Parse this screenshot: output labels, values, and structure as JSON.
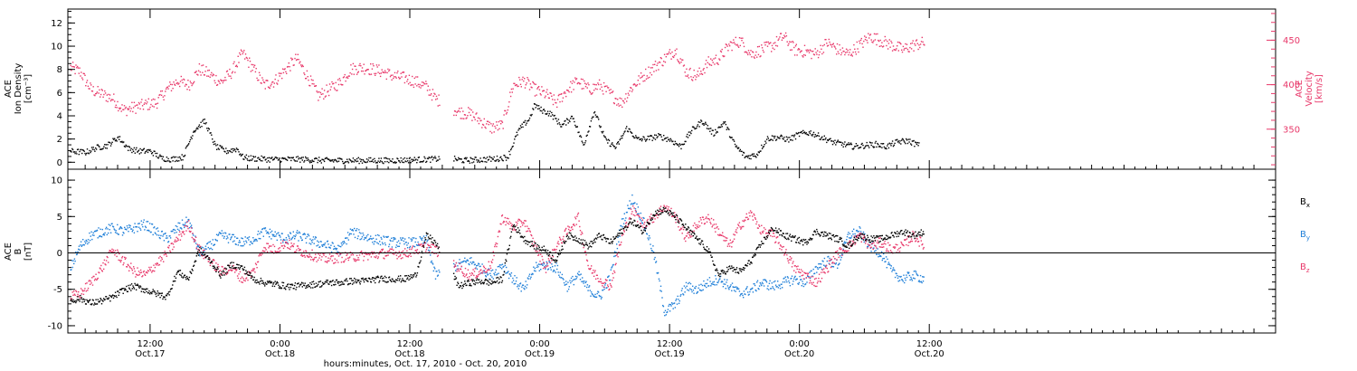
{
  "footer": {
    "xlabel": "hours:minutes, Oct. 17, 2010 - Oct. 20, 2010"
  },
  "colors": {
    "black": "#000000",
    "pink": "#e8386a",
    "blue": "#1f7fd8"
  },
  "chart_data": [
    {
      "type": "scatter",
      "panel": "top",
      "title": "",
      "ylabel_lines": [
        "ACE",
        "Ion Density",
        "[cm⁻³]"
      ],
      "y2label_lines": [
        "ACE",
        "Velocity",
        "[km/s]"
      ],
      "xlabel": "hours:minutes, Oct. 17, 2010 - Oct. 20, 2010",
      "x_unit": "hours since 2010-10-17 00:00 UT",
      "xlim": [
        4.4,
        116.0
      ],
      "x_ticks": [
        {
          "value": 12,
          "time": "12:00",
          "day": "Oct.17"
        },
        {
          "value": 24,
          "time": "0:00",
          "day": "Oct.18"
        },
        {
          "value": 36,
          "time": "12:00",
          "day": "Oct.18"
        },
        {
          "value": 48,
          "time": "0:00",
          "day": "Oct.19"
        },
        {
          "value": 60,
          "time": "12:00",
          "day": "Oct.19"
        },
        {
          "value": 72,
          "time": "0:00",
          "day": "Oct.20"
        },
        {
          "value": 84,
          "time": "12:00",
          "day": "Oct.20"
        }
      ],
      "ylim": [
        -0.6,
        13.2
      ],
      "y_ticks": [
        0,
        2,
        4,
        6,
        8,
        10,
        12
      ],
      "y2lim": [
        305,
        485
      ],
      "y2_ticks": [
        350,
        400,
        450
      ],
      "series": [
        {
          "axis": "left",
          "color": "#000000",
          "x": [
            4.6,
            6,
            7,
            8,
            9,
            10,
            11,
            12,
            13,
            14,
            15,
            16,
            17,
            18,
            19,
            20,
            20.5,
            21,
            22,
            23,
            24,
            26,
            28,
            30,
            32,
            34,
            36,
            38,
            39.5,
            41,
            42,
            43,
            44,
            45,
            46,
            47,
            47.5,
            48,
            49,
            50,
            51,
            52,
            53,
            54,
            55,
            56,
            57,
            58,
            59,
            60,
            61,
            62,
            63,
            64,
            65,
            66,
            67,
            68,
            69,
            70,
            71,
            72,
            73,
            74,
            75,
            76,
            77,
            78,
            79,
            80,
            81,
            82,
            83
          ],
          "y": [
            1.0,
            0.9,
            1.3,
            1.5,
            2.2,
            1.2,
            1.0,
            1.0,
            0.4,
            0.3,
            0.5,
            2.8,
            3.6,
            1.4,
            1.0,
            1.2,
            0.5,
            0.4,
            0.35,
            0.3,
            0.3,
            0.3,
            0.2,
            0.2,
            0.2,
            0.2,
            0.25,
            0.3,
            0.4,
            0.2,
            0.25,
            0.3,
            0.35,
            0.5,
            2.8,
            3.8,
            5.0,
            4.6,
            4.2,
            3.2,
            4.0,
            1.5,
            4.5,
            2.0,
            1.3,
            3.0,
            2.0,
            2.1,
            2.3,
            2.0,
            1.4,
            2.8,
            3.6,
            2.5,
            3.5,
            1.5,
            0.5,
            0.7,
            2.1,
            2.2,
            2.0,
            2.5,
            2.6,
            2.2,
            1.8,
            1.6,
            1.4,
            1.5,
            1.6,
            1.4,
            1.8,
            1.9,
            1.5
          ],
          "gaps": [
            [
              38.7,
              40.0
            ]
          ]
        },
        {
          "axis": "right",
          "color": "#e8386a",
          "x": [
            4.6,
            5.5,
            6.5,
            7.5,
            8.5,
            9.5,
            10.5,
            11.5,
            12.5,
            13.5,
            14.5,
            15.5,
            16.5,
            17.5,
            18.5,
            19.5,
            20.5,
            21.5,
            22.5,
            23.5,
            24.5,
            25.5,
            26.5,
            27.5,
            28.5,
            29.5,
            30.5,
            31.5,
            32.5,
            33.5,
            34.5,
            35.5,
            36.5,
            37.5,
            38.3,
            40.5,
            41.5,
            42.5,
            43.5,
            44.5,
            45.5,
            46.5,
            47.5,
            48.5,
            49.5,
            50.5,
            51.5,
            52.5,
            53.5,
            54.5,
            55.5,
            56.5,
            57.5,
            58.5,
            59.5,
            60.5,
            61.5,
            62.5,
            63.5,
            64.5,
            65.5,
            66.5,
            67.5,
            68.5,
            69.5,
            70.5,
            71.5,
            72.5,
            73.5,
            74.5,
            75.5,
            76.5,
            77.5,
            78.5,
            79.5,
            80.5,
            81.5,
            82.5,
            83.5
          ],
          "y": [
            420,
            415,
            395,
            390,
            385,
            372,
            375,
            378,
            380,
            395,
            405,
            400,
            418,
            412,
            403,
            415,
            436,
            418,
            400,
            405,
            418,
            430,
            410,
            388,
            395,
            403,
            418,
            420,
            418,
            415,
            410,
            408,
            404,
            398,
            385,
            370,
            368,
            360,
            352,
            355,
            400,
            405,
            395,
            390,
            380,
            395,
            405,
            395,
            400,
            390,
            380,
            398,
            410,
            420,
            430,
            440,
            415,
            410,
            425,
            430,
            445,
            450,
            435,
            440,
            445,
            455,
            440,
            438,
            435,
            448,
            440,
            435,
            445,
            455,
            450,
            445,
            440,
            445,
            448
          ],
          "gaps": [
            [
              38.7,
              40.0
            ]
          ]
        }
      ]
    },
    {
      "type": "scatter",
      "panel": "bottom",
      "title": "",
      "ylabel_lines": [
        "ACE",
        "B",
        "[nT]"
      ],
      "xlabel": "hours:minutes, Oct. 17, 2010 - Oct. 20, 2010",
      "x_unit": "hours since 2010-10-17 00:00 UT",
      "xlim": [
        4.4,
        116.0
      ],
      "ylim": [
        -11,
        11.5
      ],
      "y_ticks": [
        -10,
        -5,
        0,
        5,
        10
      ],
      "zero_line": true,
      "legend": {
        "position": "right",
        "entries": [
          {
            "name": "B",
            "sub": "x",
            "color": "#000000"
          },
          {
            "name": "B",
            "sub": "y",
            "color": "#1f7fd8"
          },
          {
            "name": "B",
            "sub": "z",
            "color": "#e8386a"
          }
        ]
      },
      "series": [
        {
          "name": "Bx",
          "color": "#000000",
          "x": [
            4.6,
            5.5,
            6.5,
            7.5,
            8.5,
            9.5,
            10.5,
            11.5,
            12.5,
            13.5,
            14.5,
            15.5,
            16.5,
            17.5,
            18.5,
            19.5,
            20.5,
            21.5,
            22.5,
            23.5,
            24.5,
            25.5,
            26.5,
            27.5,
            28.5,
            29.5,
            30.5,
            31.5,
            32.5,
            33.5,
            34.5,
            35.5,
            36.5,
            37.5,
            38.3,
            40.5,
            41.5,
            42.5,
            43.5,
            44.5,
            45.5,
            46.5,
            47.5,
            48.5,
            49.5,
            50.5,
            51.5,
            52.5,
            53.5,
            54.5,
            55.5,
            56.5,
            57.5,
            58.5,
            59.5,
            60.5,
            61.5,
            62.5,
            63.5,
            64.5,
            65.5,
            66.5,
            67.5,
            68.5,
            69.5,
            70.5,
            71.5,
            72.5,
            73.5,
            74.5,
            75.5,
            76.5,
            77.5,
            78.5,
            79.5,
            80.5,
            81.5,
            82.5,
            83.5
          ],
          "y": [
            -6.5,
            -6.2,
            -6.8,
            -6.5,
            -6.0,
            -5.0,
            -4.5,
            -5.0,
            -5.5,
            -6.0,
            -2.5,
            -3.5,
            0.5,
            -1.0,
            -3.0,
            -1.5,
            -2.0,
            -3.5,
            -4.0,
            -4.2,
            -4.5,
            -4.5,
            -4.3,
            -4.2,
            -4.0,
            -4.0,
            -3.8,
            -3.8,
            -3.6,
            -3.5,
            -3.5,
            -3.5,
            -3.0,
            2.5,
            1.5,
            -4.5,
            -4.0,
            -3.8,
            -4.0,
            -3.5,
            4.0,
            2.0,
            1.0,
            0.5,
            -1.0,
            2.5,
            2.0,
            1.0,
            2.5,
            1.5,
            3.0,
            4.5,
            3.0,
            5.5,
            6.0,
            5.0,
            3.5,
            2.0,
            0.5,
            -3.0,
            -2.0,
            -2.5,
            -1.0,
            1.5,
            3.5,
            2.5,
            2.0,
            1.5,
            3.0,
            2.5,
            2.0,
            1.0,
            2.5,
            2.0,
            2.0,
            2.5,
            3.0,
            2.5,
            3.0
          ],
          "gaps": [
            [
              38.7,
              40.0
            ]
          ]
        },
        {
          "name": "By",
          "color": "#1f7fd8",
          "x": [
            4.6,
            5.5,
            6.5,
            7.5,
            8.5,
            9.5,
            10.5,
            11.5,
            12.5,
            13.5,
            14.5,
            15.5,
            16.5,
            17.5,
            18.5,
            19.5,
            20.5,
            21.5,
            22.5,
            23.5,
            24.5,
            25.5,
            26.5,
            27.5,
            28.5,
            29.5,
            30.5,
            31.5,
            32.5,
            33.5,
            34.5,
            35.5,
            36.5,
            37.5,
            38.3,
            40.5,
            41.5,
            42.5,
            43.5,
            44.5,
            45.5,
            46.5,
            47.5,
            48.5,
            49.5,
            50.5,
            51.5,
            52.5,
            53.5,
            54.5,
            55.5,
            56.5,
            57.5,
            58.5,
            59.5,
            60.5,
            61.5,
            62.5,
            63.5,
            64.5,
            65.5,
            66.5,
            67.5,
            68.5,
            69.5,
            70.5,
            71.5,
            72.5,
            73.5,
            74.5,
            75.5,
            76.5,
            77.5,
            78.5,
            79.5,
            80.5,
            81.5,
            82.5,
            83.5
          ],
          "y": [
            -2.0,
            1.0,
            2.5,
            3.0,
            3.5,
            3.0,
            3.5,
            4.0,
            3.0,
            2.0,
            3.5,
            4.5,
            0.0,
            1.0,
            2.5,
            2.0,
            1.5,
            2.0,
            3.0,
            2.5,
            2.0,
            2.5,
            2.0,
            1.5,
            1.0,
            0.5,
            3.0,
            2.5,
            2.0,
            1.8,
            1.5,
            1.5,
            1.5,
            1.8,
            -3.0,
            -1.5,
            -1.0,
            -2.0,
            -3.0,
            -1.5,
            -3.5,
            -5.0,
            -2.0,
            -1.5,
            -2.0,
            -4.5,
            -3.0,
            -5.0,
            -6.0,
            -3.0,
            4.0,
            7.5,
            4.5,
            0.0,
            -8.0,
            -7.0,
            -4.5,
            -5.0,
            -4.0,
            -3.5,
            -4.5,
            -5.5,
            -5.0,
            -4.0,
            -4.5,
            -4.0,
            -3.5,
            -4.0,
            -2.0,
            -1.0,
            -1.5,
            2.5,
            3.0,
            1.0,
            0.0,
            -2.5,
            -3.5,
            -3.0,
            -3.5
          ],
          "gaps": [
            [
              38.7,
              40.0
            ]
          ]
        },
        {
          "name": "Bz",
          "color": "#e8386a",
          "x": [
            4.6,
            5.5,
            6.5,
            7.5,
            8.5,
            9.5,
            10.5,
            11.5,
            12.5,
            13.5,
            14.5,
            15.5,
            16.5,
            17.5,
            18.5,
            19.5,
            20.5,
            21.5,
            22.5,
            23.5,
            24.5,
            25.5,
            26.5,
            27.5,
            28.5,
            29.5,
            30.5,
            31.5,
            32.5,
            33.5,
            34.5,
            35.5,
            36.5,
            37.5,
            38.3,
            40.5,
            41.5,
            42.5,
            43.5,
            44.5,
            45.5,
            46.5,
            47.5,
            48.5,
            49.5,
            50.5,
            51.5,
            52.5,
            53.5,
            54.5,
            55.5,
            56.5,
            57.5,
            58.5,
            59.5,
            60.5,
            61.5,
            62.5,
            63.5,
            64.5,
            65.5,
            66.5,
            67.5,
            68.5,
            69.5,
            70.5,
            71.5,
            72.5,
            73.5,
            74.5,
            75.5,
            76.5,
            77.5,
            78.5,
            79.5,
            80.5,
            81.5,
            82.5,
            83.5
          ],
          "y": [
            -6.0,
            -5.5,
            -4.0,
            -2.0,
            0.5,
            -1.0,
            -2.5,
            -3.0,
            -1.5,
            0.0,
            2.0,
            4.0,
            0.5,
            -1.0,
            -2.5,
            -2.0,
            -3.5,
            -2.5,
            1.0,
            0.5,
            1.5,
            0.5,
            0.0,
            -0.5,
            -0.8,
            -0.5,
            -0.5,
            -0.3,
            -0.2,
            0.0,
            0.0,
            0.0,
            0.5,
            1.0,
            0.5,
            -2.0,
            -3.0,
            -2.5,
            -1.5,
            5.0,
            3.5,
            4.5,
            1.0,
            -2.0,
            1.0,
            3.0,
            5.0,
            -2.0,
            -3.5,
            -4.5,
            2.0,
            6.0,
            4.0,
            5.0,
            6.5,
            5.0,
            2.0,
            4.0,
            5.0,
            3.0,
            1.0,
            4.0,
            5.5,
            3.0,
            2.5,
            0.5,
            -2.0,
            -3.0,
            -4.0,
            -2.0,
            0.0,
            1.0,
            2.5,
            1.0,
            1.5,
            0.5,
            1.0,
            2.5,
            1.0
          ],
          "gaps": [
            [
              38.7,
              40.0
            ]
          ]
        }
      ]
    }
  ]
}
